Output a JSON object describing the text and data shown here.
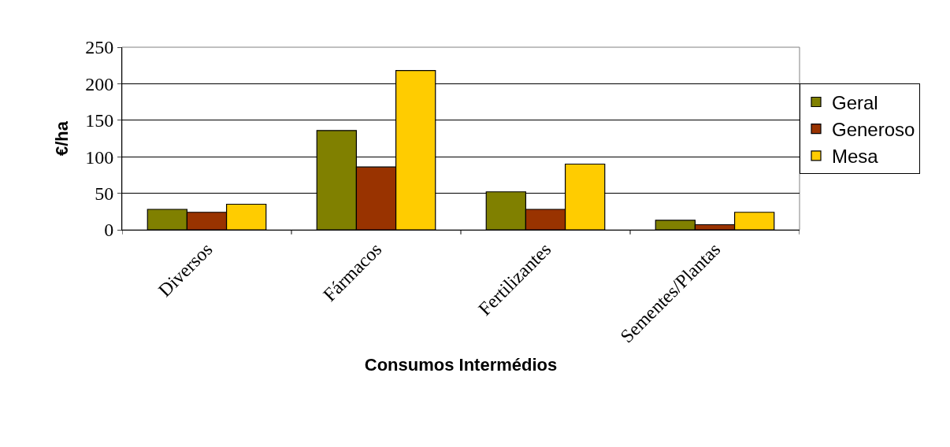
{
  "chart_data": {
    "type": "bar",
    "xlabel": "Consumos Intermédios",
    "ylabel": "€/ha",
    "categories": [
      "Diversos",
      "Fármacos",
      "Fertilizantes",
      "Sementes/Plantas"
    ],
    "series": [
      {
        "name": "Geral",
        "color": "#808000",
        "values": [
          28,
          136,
          52,
          13
        ]
      },
      {
        "name": "Generoso",
        "color": "#993300",
        "values": [
          24,
          86,
          28,
          7
        ]
      },
      {
        "name": "Mesa",
        "color": "#ffcc00",
        "values": [
          35,
          218,
          90,
          24
        ]
      }
    ],
    "ylim": [
      0,
      250
    ],
    "yticks": [
      0,
      50,
      100,
      150,
      200,
      250
    ],
    "grid": "y",
    "legend": "right"
  }
}
